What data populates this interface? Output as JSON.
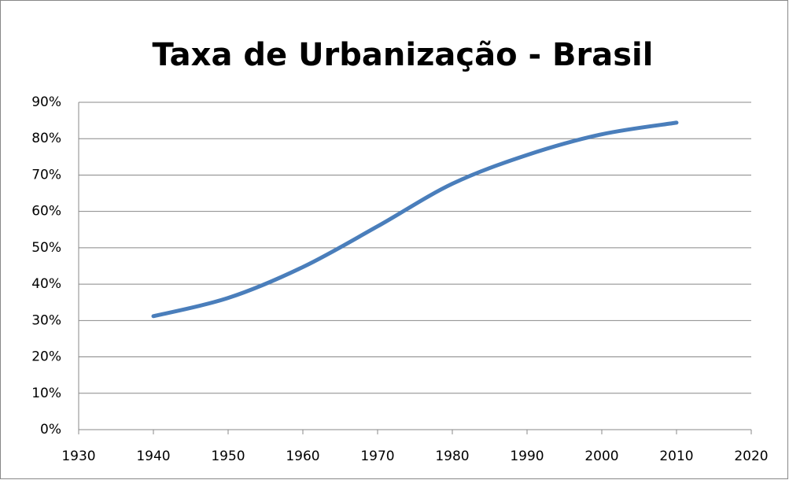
{
  "chart_data": {
    "type": "line",
    "title": "Taxa de Urbanização - Brasil",
    "x": [
      1940,
      1950,
      1960,
      1970,
      1980,
      1990,
      2000,
      2010
    ],
    "values": [
      31.2,
      36.2,
      44.7,
      55.9,
      67.6,
      75.5,
      81.2,
      84.4
    ],
    "color": "#4a7ebb",
    "xlim": [
      1930,
      2020
    ],
    "xticks": [
      1930,
      1940,
      1950,
      1960,
      1970,
      1980,
      1990,
      2000,
      2010,
      2020
    ],
    "ylim": [
      0,
      90
    ],
    "yticks": [
      {
        "value": 0,
        "label": "0%"
      },
      {
        "value": 10,
        "label": "10%"
      },
      {
        "value": 20,
        "label": "20%"
      },
      {
        "value": 30,
        "label": "30%"
      },
      {
        "value": 40,
        "label": "40%"
      },
      {
        "value": 50,
        "label": "50%"
      },
      {
        "value": 60,
        "label": "60%"
      },
      {
        "value": 70,
        "label": "70%"
      },
      {
        "value": 80,
        "label": "80%"
      },
      {
        "value": 90,
        "label": "90%"
      }
    ],
    "grid": true
  }
}
